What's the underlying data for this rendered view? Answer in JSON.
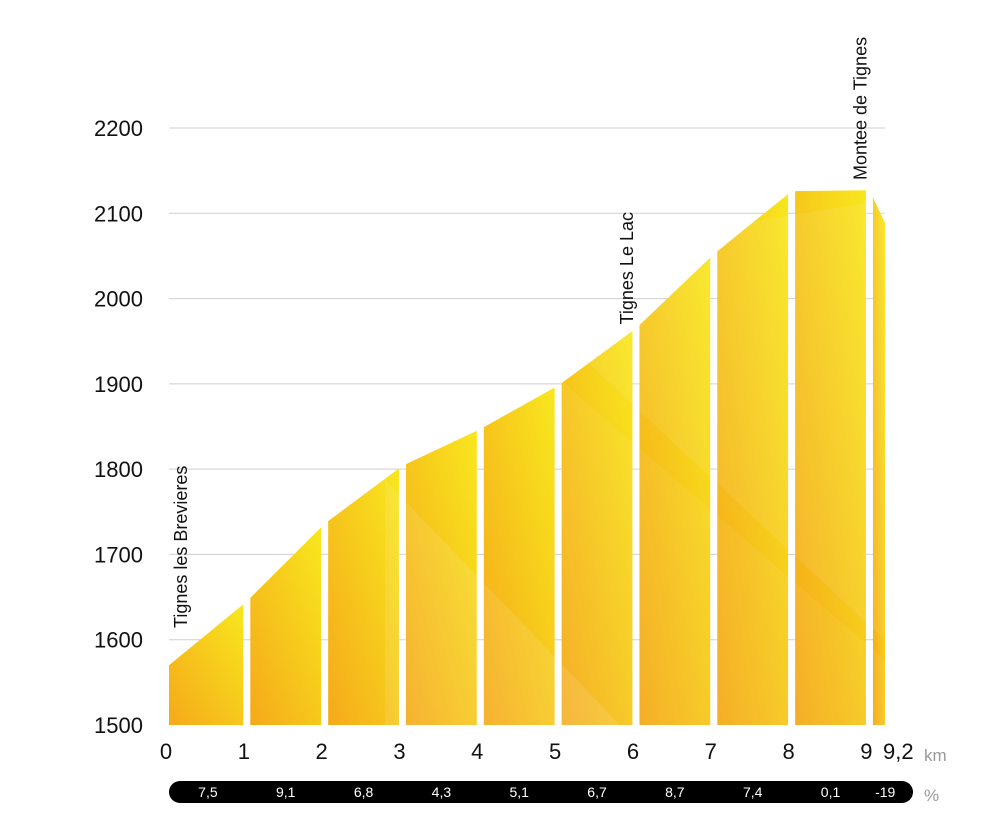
{
  "chart_data": {
    "type": "area",
    "x_unit": "km",
    "gradient_unit": "%",
    "ylim": [
      1500,
      2200
    ],
    "y_ticks": [
      "1500",
      "1600",
      "1700",
      "1800",
      "1900",
      "2000",
      "2100",
      "2200"
    ],
    "x_ticks": [
      {
        "value": 0,
        "label": "0"
      },
      {
        "value": 1,
        "label": "1"
      },
      {
        "value": 2,
        "label": "2"
      },
      {
        "value": 3,
        "label": "3"
      },
      {
        "value": 4,
        "label": "4"
      },
      {
        "value": 5,
        "label": "5"
      },
      {
        "value": 6,
        "label": "6"
      },
      {
        "value": 7,
        "label": "7"
      },
      {
        "value": 8,
        "label": "8"
      },
      {
        "value": 9,
        "label": "9"
      },
      {
        "value": 9.2,
        "label": "9,2"
      }
    ],
    "grid": true,
    "segments": [
      {
        "from_km": 0,
        "to_km": 1,
        "start_alt": 1570,
        "end_alt": 1645,
        "gradient": "7,5"
      },
      {
        "from_km": 1,
        "to_km": 2,
        "start_alt": 1645,
        "end_alt": 1736,
        "gradient": "9,1"
      },
      {
        "from_km": 2,
        "to_km": 3,
        "start_alt": 1736,
        "end_alt": 1804,
        "gradient": "6,8"
      },
      {
        "from_km": 3,
        "to_km": 4,
        "start_alt": 1804,
        "end_alt": 1847,
        "gradient": "4,3"
      },
      {
        "from_km": 4,
        "to_km": 5,
        "start_alt": 1847,
        "end_alt": 1898,
        "gradient": "5,1"
      },
      {
        "from_km": 5,
        "to_km": 6,
        "start_alt": 1898,
        "end_alt": 1965,
        "gradient": "6,7"
      },
      {
        "from_km": 6,
        "to_km": 7,
        "start_alt": 1965,
        "end_alt": 2052,
        "gradient": "8,7"
      },
      {
        "from_km": 7,
        "to_km": 8,
        "start_alt": 2052,
        "end_alt": 2126,
        "gradient": "7,4"
      },
      {
        "from_km": 8,
        "to_km": 9,
        "start_alt": 2126,
        "end_alt": 2127,
        "gradient": "0,1"
      },
      {
        "from_km": 9,
        "to_km": 9.2,
        "start_alt": 2127,
        "end_alt": 2089,
        "gradient": "-19"
      }
    ],
    "places": [
      {
        "name": "Tignes les Brevieres",
        "km": 0
      },
      {
        "name": "Tignes Le Lac",
        "km": 6
      },
      {
        "name": "Montee de Tignes",
        "km": 9
      }
    ]
  },
  "colors": {
    "low": "#F5A91A",
    "high": "#F8E71E",
    "grid": "#cfcfcf",
    "gradient_bar": "#000000"
  }
}
